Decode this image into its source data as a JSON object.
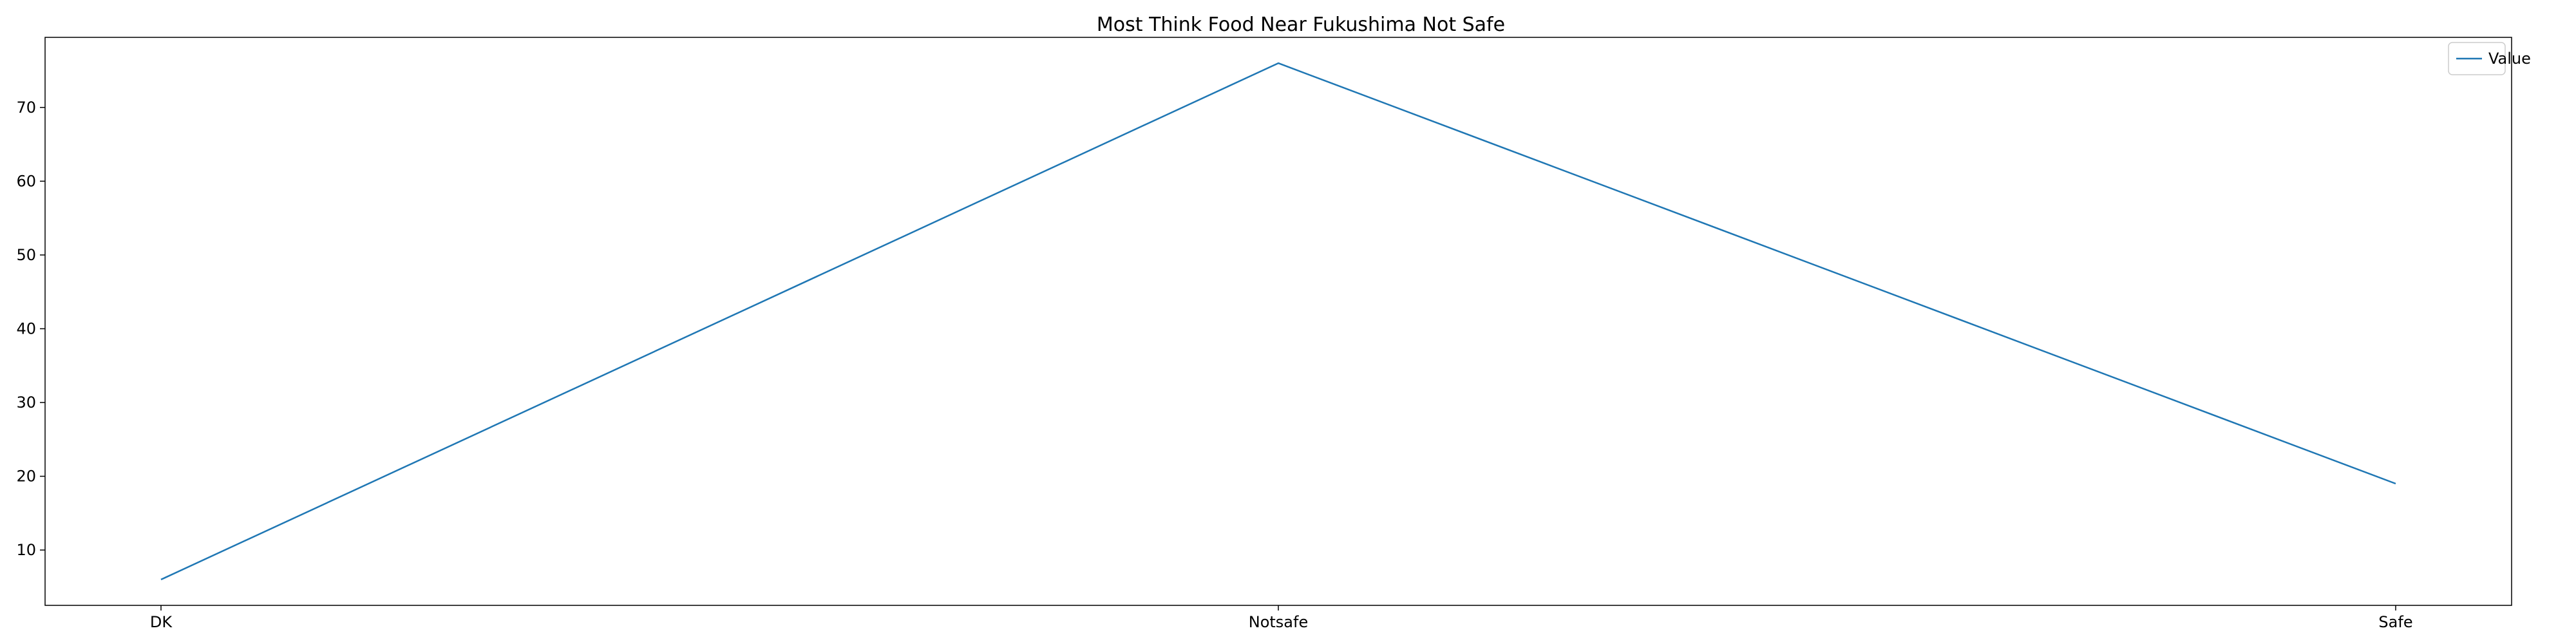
{
  "chart_data": {
    "type": "line",
    "title": "Most Think Food Near Fukushima Not Safe",
    "xlabel": "",
    "ylabel": "",
    "categories": [
      "DK",
      "Notsafe",
      "Safe"
    ],
    "series": [
      {
        "name": "Value",
        "values": [
          6,
          76,
          19
        ],
        "color": "#1f77b4"
      }
    ],
    "ylim": [
      2.5,
      79.5
    ],
    "yticks": [
      10,
      20,
      30,
      40,
      50,
      60,
      70
    ],
    "grid": false,
    "legend_position": "top-right"
  }
}
